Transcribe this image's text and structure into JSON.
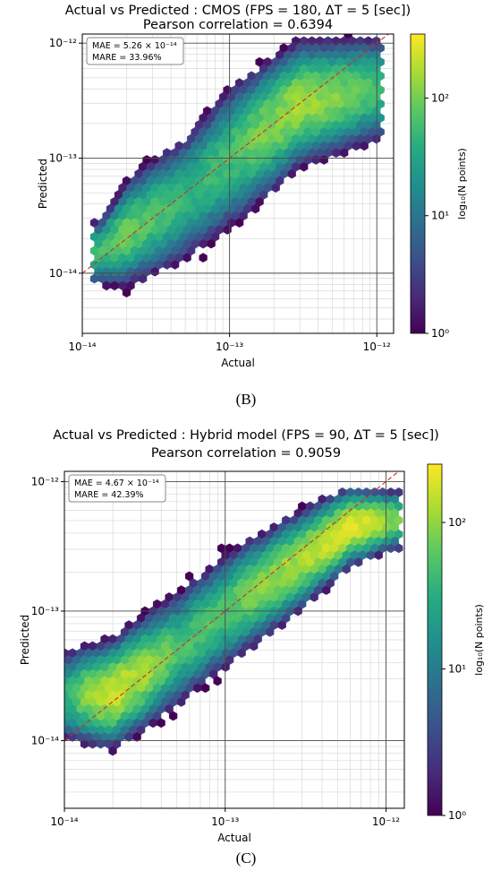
{
  "chart_data": [
    {
      "type": "heatmap",
      "variant": "hexbin",
      "title": "Actual vs Predicted : CMOS (FPS = 180, ΔT = 5 [sec])",
      "subtitle": "Pearson correlation  = 0.6394",
      "xlabel": "Actual",
      "ylabel": "Predicted",
      "x_scale": "log",
      "y_scale": "log",
      "xlim": [
        1e-14,
        1.3e-12
      ],
      "ylim": [
        3e-15,
        1.2e-12
      ],
      "x_ticks": [
        "10⁻¹⁴",
        "10⁻¹³",
        "10⁻¹²"
      ],
      "y_ticks": [
        "10⁻¹⁴",
        "10⁻¹³",
        "10⁻¹²"
      ],
      "grid": true,
      "reference_line": "y = x",
      "annotation": [
        "MAE = 5.26 × 10⁻¹⁴",
        "MARE = 33.96%"
      ],
      "colorbar_label": "log₁₀(N points)",
      "colorbar_ticks": [
        "10⁰",
        "10¹",
        "10²"
      ],
      "colorbar_range": [
        1,
        350
      ],
      "density_ridge": [
        {
          "x": 1.3e-14,
          "y": 1.5e-14,
          "spread_decades": 0.1,
          "density": 60
        },
        {
          "x": 2e-14,
          "y": 2.2e-14,
          "spread_decades": 0.16,
          "density": 90
        },
        {
          "x": 5e-14,
          "y": 4.5e-14,
          "spread_decades": 0.2,
          "density": 45
        },
        {
          "x": 1e-13,
          "y": 1e-13,
          "spread_decades": 0.22,
          "density": 60
        },
        {
          "x": 3e-13,
          "y": 3e-13,
          "spread_decades": 0.18,
          "density": 160
        },
        {
          "x": 1e-12,
          "y": 4e-13,
          "spread_decades": 0.16,
          "density": 60
        }
      ]
    },
    {
      "type": "heatmap",
      "variant": "hexbin",
      "title": "Actual vs Predicted : Hybrid model (FPS = 90, ΔT = 5 [sec])",
      "subtitle": "Pearson correlation  = 0.9059",
      "xlabel": "Actual",
      "ylabel": "Predicted",
      "x_scale": "log",
      "y_scale": "log",
      "xlim": [
        1e-14,
        1.3e-12
      ],
      "ylim": [
        3e-15,
        1.2e-12
      ],
      "x_ticks": [
        "10⁻¹⁴",
        "10⁻¹³",
        "10⁻¹²"
      ],
      "y_ticks": [
        "10⁻¹⁴",
        "10⁻¹³",
        "10⁻¹²"
      ],
      "grid": true,
      "reference_line": "y = x",
      "annotation": [
        "MAE = 4.67 × 10⁻¹⁴",
        "MARE = 42.39%"
      ],
      "colorbar_label": "log₁₀(N points)",
      "colorbar_ticks": [
        "10⁰",
        "10¹",
        "10²"
      ],
      "colorbar_range": [
        1,
        250
      ],
      "density_ridge": [
        {
          "x": 1.1e-14,
          "y": 2.2e-14,
          "spread_decades": 0.13,
          "density": 40
        },
        {
          "x": 2e-14,
          "y": 2.3e-14,
          "spread_decades": 0.14,
          "density": 180
        },
        {
          "x": 5e-14,
          "y": 5e-14,
          "spread_decades": 0.16,
          "density": 50
        },
        {
          "x": 1e-13,
          "y": 1e-13,
          "spread_decades": 0.16,
          "density": 55
        },
        {
          "x": 3e-13,
          "y": 2.5e-13,
          "spread_decades": 0.13,
          "density": 130
        },
        {
          "x": 6e-13,
          "y": 4.5e-13,
          "spread_decades": 0.1,
          "density": 220
        },
        {
          "x": 1.1e-12,
          "y": 5e-13,
          "spread_decades": 0.08,
          "density": 90
        }
      ]
    }
  ],
  "captions": [
    "(B)",
    "(C)"
  ]
}
